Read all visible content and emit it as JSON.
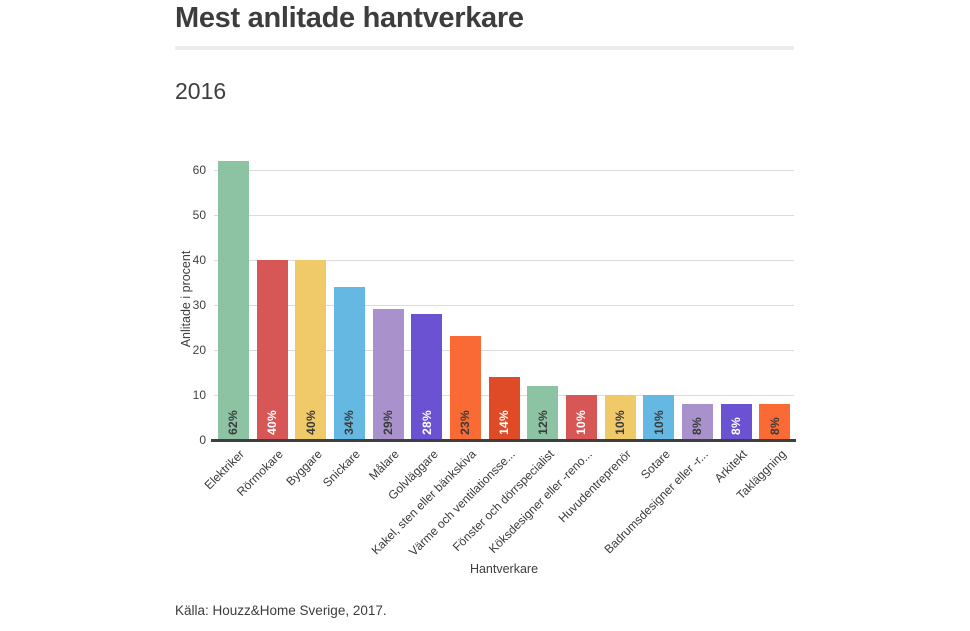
{
  "header": {
    "title": "Mest anlitade hantverkare",
    "subtitle": "2016"
  },
  "source": {
    "text": "Källa: Houzz&Home Sverige, 2017."
  },
  "chart_data": {
    "type": "bar",
    "title": "Mest anlitade hantverkare",
    "subtitle": "2016",
    "xlabel": "Hantverkare",
    "ylabel": "Anlitade i procent",
    "ylim": [
      0,
      62
    ],
    "yticks": [
      0,
      10,
      20,
      30,
      40,
      50,
      60
    ],
    "grid": true,
    "legend": "none",
    "categories": [
      "Elektriker",
      "Rörmokare",
      "Byggare",
      "Snickare",
      "Målare",
      "Golvläggare",
      "Kakel, sten eller bänkskiva",
      "Värme och ventilationsse...",
      "Fönster och dörrspecialist",
      "Köksdesigner eller -reno...",
      "Huvudentreprenör",
      "Sotare",
      "Badrumsdesigner eller -r...",
      "Arkitekt",
      "Takläggning"
    ],
    "values": [
      62,
      40,
      40,
      34,
      29,
      28,
      23,
      14,
      12,
      10,
      10,
      10,
      8,
      8,
      8
    ],
    "bar_labels": [
      "62%",
      "40%",
      "40%",
      "34%",
      "29%",
      "28%",
      "23%",
      "14%",
      "12%",
      "10%",
      "10%",
      "10%",
      "8%",
      "8%",
      "8%"
    ],
    "bar_colors": [
      "#8cc3a2",
      "#d75757",
      "#f0c968",
      "#64b8e2",
      "#a991cc",
      "#6a52d2",
      "#f96a35",
      "#e04b27",
      "#8cc3a2",
      "#d75757",
      "#f0c968",
      "#64b8e2",
      "#a991cc",
      "#6a52d2",
      "#f96a35"
    ],
    "value_label_colors": [
      "#3b3b3b",
      "#ffffff",
      "#3b3b3b",
      "#3b3b3b",
      "#3b3b3b",
      "#ffffff",
      "#3b3b3b",
      "#ffffff",
      "#3b3b3b",
      "#ffffff",
      "#3b3b3b",
      "#3b3b3b",
      "#3b3b3b",
      "#ffffff",
      "#3b3b3b"
    ],
    "axis_colors": {
      "gridline": "#dcdcdc",
      "baseline": "#3f3f3f",
      "tick_text": "#414141"
    }
  }
}
